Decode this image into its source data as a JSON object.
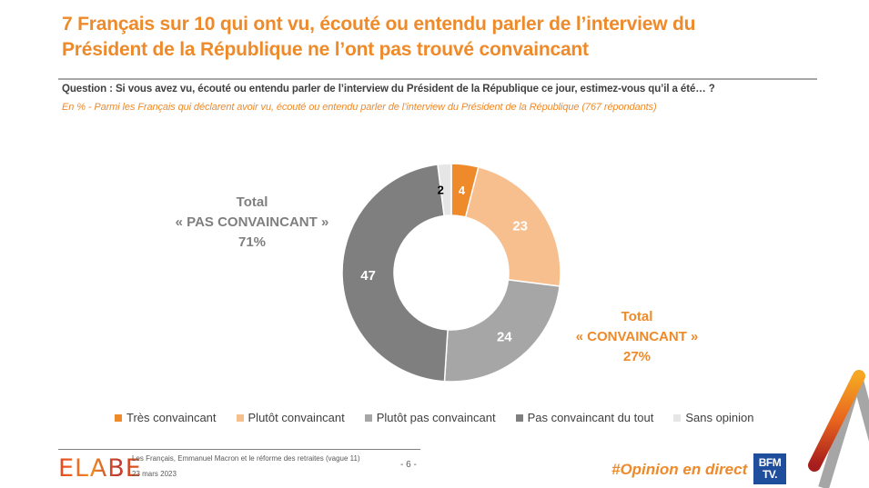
{
  "header": {
    "title_line1": "7 Français sur 10 qui ont vu, écouté ou entendu parler de l’interview du",
    "title_line2": "Président de la République ne l’ont pas trouvé convaincant",
    "question": "Question : Si vous avez vu, écouté ou entendu parler de l’interview du Président de la République ce jour, estimez-vous qu’il a été… ?",
    "base": "En % - Parmi les Français qui déclarent avoir vu, écouté ou entendu parler de l’interview du Président de la République (767 répondants)"
  },
  "totals": {
    "negative": {
      "line1": "Total",
      "line2": "« PAS CONVAINCANT »",
      "line3": "71%"
    },
    "positive": {
      "line1": "Total",
      "line2": "« CONVAINCANT »",
      "line3": "27%"
    }
  },
  "chart_data": {
    "type": "pie",
    "variant": "donut",
    "title": "",
    "categories": [
      "Très convaincant",
      "Plutôt convaincant",
      "Plutôt pas convaincant",
      "Pas convaincant du tout",
      "Sans opinion"
    ],
    "values": [
      4,
      23,
      24,
      47,
      2
    ],
    "colors": [
      "#ee8a2a",
      "#f8bf8e",
      "#a6a6a6",
      "#7f7f7f",
      "#e6e6e6"
    ],
    "label_colors": [
      "#ffffff",
      "#ffffff",
      "#ffffff",
      "#ffffff",
      "#000000"
    ],
    "unit": "%",
    "start": "top, clockwise",
    "legend_position": "bottom"
  },
  "legend": [
    {
      "label": "Très convaincant",
      "color": "#ee8a2a"
    },
    {
      "label": "Plutôt convaincant",
      "color": "#f8bf8e"
    },
    {
      "label": "Plutôt pas convaincant",
      "color": "#a6a6a6"
    },
    {
      "label": "Pas convaincant du tout",
      "color": "#7f7f7f"
    },
    {
      "label": "Sans opinion",
      "color": "#e6e6e6"
    }
  ],
  "footer": {
    "logo": "ELABE",
    "study": "Les Français, Emmanuel Macron et le réforme des retraites (vague 11)",
    "date": "23 mars 2023",
    "page": "- 6 -",
    "hashtag": "#Opinion en direct",
    "broadcaster_line1": "BFM",
    "broadcaster_line2": "TV."
  }
}
